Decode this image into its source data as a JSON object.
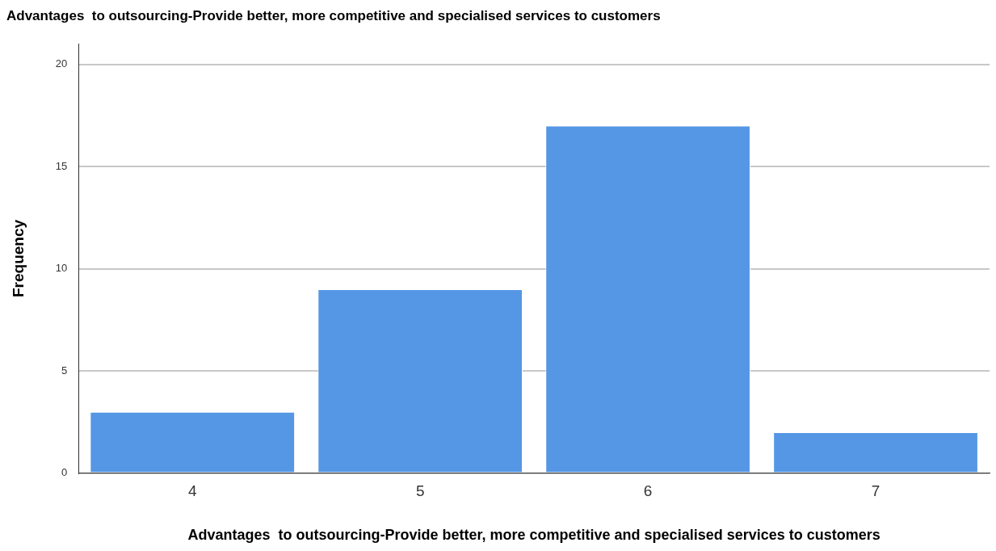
{
  "chart_data": {
    "type": "bar",
    "title": "Advantages  to outsourcing-Provide better, more competitive and specialised services to customers",
    "xlabel": "Advantages  to outsourcing-Provide better, more competitive and specialised services to customers",
    "ylabel": "Frequency",
    "categories": [
      "4",
      "5",
      "6",
      "7"
    ],
    "values": [
      3,
      9,
      17,
      2
    ],
    "color": "#5596e5",
    "ylim": [
      0,
      21
    ],
    "yticks": [
      0,
      5,
      10,
      15,
      20
    ],
    "grid": "y"
  }
}
